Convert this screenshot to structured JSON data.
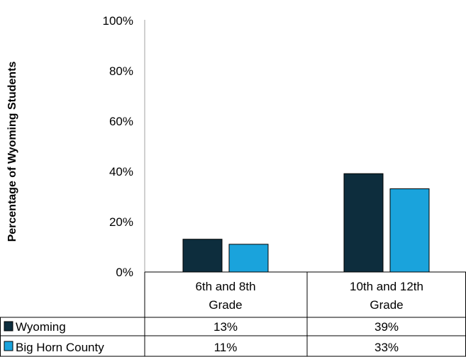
{
  "chart_data": {
    "type": "bar",
    "categories": [
      "6th and 8th Grade",
      "10th and 12th Grade"
    ],
    "category_lines": [
      [
        "6th and 8th",
        "Grade"
      ],
      [
        "10th and 12th",
        "Grade"
      ]
    ],
    "series": [
      {
        "name": "Wyoming",
        "color": "#0d2d3d",
        "values": [
          13,
          39
        ],
        "labels": [
          "13%",
          "39%"
        ]
      },
      {
        "name": "Big Horn County",
        "color": "#1aa3dc",
        "values": [
          11,
          33
        ],
        "labels": [
          "11%",
          "33%"
        ]
      }
    ],
    "ylabel": "Percentage of Wyoming Students",
    "yticks": [
      "0%",
      "20%",
      "40%",
      "60%",
      "80%",
      "100%"
    ],
    "ylim": [
      0,
      100
    ],
    "data_table": true,
    "grid": false
  }
}
